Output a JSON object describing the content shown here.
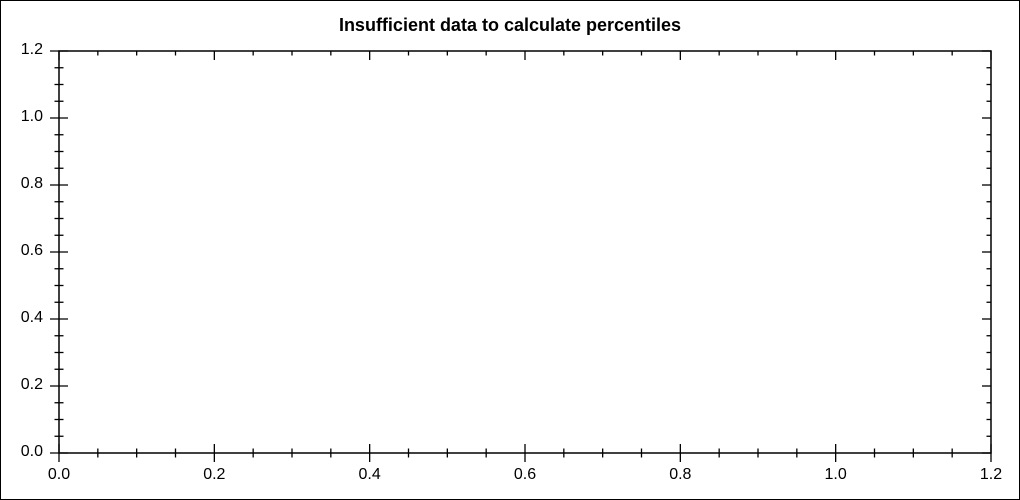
{
  "chart_data": {
    "type": "line",
    "title": "Insufficient data to calculate percentiles",
    "series": [],
    "xlabel": "",
    "ylabel": "",
    "xlim": [
      0.0,
      1.2
    ],
    "ylim": [
      0.0,
      1.2
    ],
    "x_tick_labels": [
      "0.0",
      "0.2",
      "0.4",
      "0.6",
      "0.8",
      "1.0",
      "1.2"
    ],
    "y_tick_labels": [
      "0.0",
      "0.2",
      "0.4",
      "0.6",
      "0.8",
      "1.0",
      "1.2"
    ],
    "x_major_step": 0.2,
    "y_major_step": 0.2,
    "minor_divisions_per_major": 4,
    "grid": false,
    "legend_position": "none",
    "colors": {
      "axis": "#000000",
      "text": "#000000",
      "background": "#ffffff",
      "frame_border": "#000000"
    }
  }
}
